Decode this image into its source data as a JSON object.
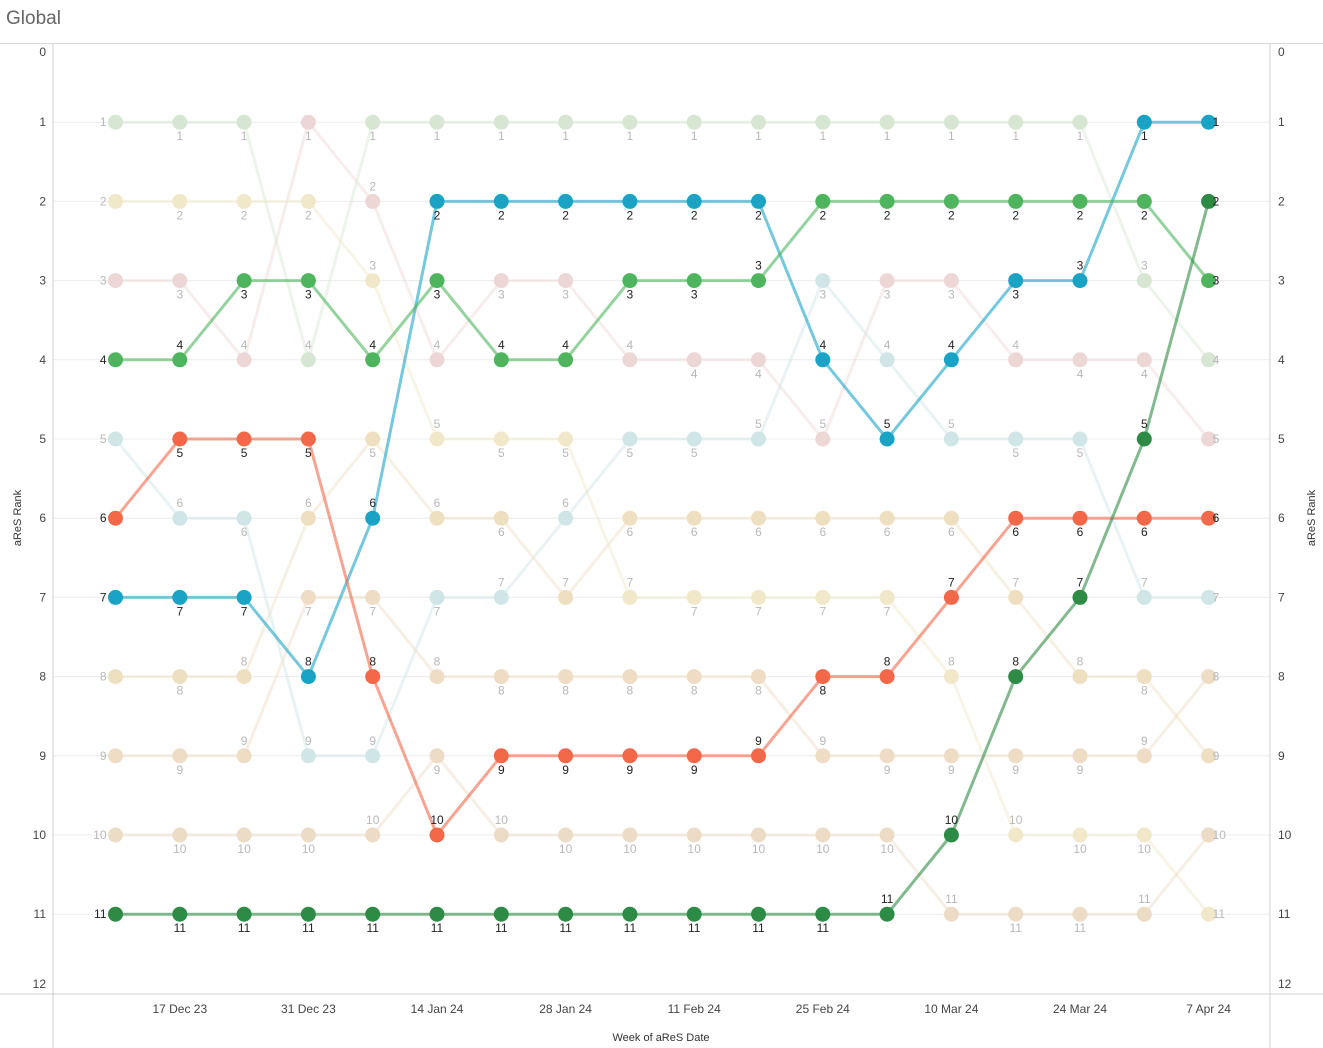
{
  "header": {
    "title": "Global"
  },
  "chart_data": {
    "type": "line",
    "title": "",
    "xlabel": "Week of aReS Date",
    "ylabel": "aReS Rank",
    "ylabel_right": "aReS Rank",
    "ylim": [
      0,
      12
    ],
    "y_reversed": true,
    "y_ticks": [
      "0",
      "1",
      "2",
      "3",
      "4",
      "5",
      "6",
      "7",
      "8",
      "9",
      "10",
      "11",
      "12"
    ],
    "x": [
      "10 Dec 23",
      "17 Dec 23",
      "24 Dec 23",
      "31 Dec 23",
      "7 Jan 24",
      "14 Jan 24",
      "21 Jan 24",
      "28 Jan 24",
      "4 Feb 24",
      "11 Feb 24",
      "18 Feb 24",
      "25 Feb 24",
      "3 Mar 24",
      "10 Mar 24",
      "17 Mar 24",
      "24 Mar 24",
      "31 Mar 24",
      "7 Apr 24"
    ],
    "x_tick_labels": [
      "17 Dec 23",
      "31 Dec 23",
      "14 Jan 24",
      "28 Jan 24",
      "11 Feb 24",
      "25 Feb 24",
      "10 Mar 24",
      "24 Mar 24",
      "7 Apr 24"
    ],
    "grid": true,
    "highlighted_series": [
      {
        "color": "#1ba3c6",
        "values": [
          7,
          7,
          7,
          8,
          6,
          2,
          2,
          2,
          2,
          2,
          2,
          4,
          5,
          4,
          3,
          3,
          1,
          1
        ]
      },
      {
        "color": "#f36849",
        "values": [
          6,
          5,
          5,
          5,
          8,
          10,
          9,
          9,
          9,
          9,
          9,
          8,
          8,
          7,
          6,
          6,
          6,
          6
        ]
      },
      {
        "color": "#4fb45e",
        "values": [
          4,
          4,
          3,
          3,
          4,
          3,
          4,
          4,
          3,
          3,
          3,
          2,
          2,
          2,
          2,
          2,
          2,
          3
        ]
      },
      {
        "color": "#2e8b45",
        "values": [
          11,
          11,
          11,
          11,
          11,
          11,
          11,
          11,
          11,
          11,
          11,
          11,
          11,
          10,
          8,
          7,
          5,
          2
        ]
      }
    ],
    "faded_series": [
      {
        "color": "#d6e6d2",
        "values": [
          1,
          1,
          1,
          4,
          1,
          1,
          1,
          1,
          1,
          1,
          1,
          1,
          1,
          1,
          1,
          1,
          3,
          4
        ]
      },
      {
        "color": "#f0e8c8",
        "values": [
          2,
          2,
          2,
          2,
          3,
          5,
          5,
          5,
          7,
          7,
          7,
          7,
          7,
          8,
          10,
          10,
          10,
          11
        ]
      },
      {
        "color": "#edd6d6",
        "values": [
          3,
          3,
          4,
          1,
          2,
          4,
          3,
          3,
          4,
          4,
          4,
          5,
          3,
          3,
          4,
          4,
          4,
          5
        ]
      },
      {
        "color": "#cfe5e6",
        "values": [
          5,
          6,
          6,
          9,
          9,
          7,
          7,
          6,
          5,
          5,
          5,
          3,
          4,
          5,
          5,
          5,
          7,
          7
        ]
      },
      {
        "color": "#eedfc1",
        "values": [
          8,
          8,
          8,
          6,
          5,
          6,
          6,
          7,
          6,
          6,
          6,
          6,
          6,
          6,
          7,
          8,
          8,
          9
        ]
      },
      {
        "color": "#eedcc4",
        "values": [
          9,
          9,
          9,
          7,
          7,
          8,
          8,
          8,
          8,
          8,
          8,
          9,
          9,
          9,
          9,
          9,
          9,
          8
        ]
      },
      {
        "color": "#ecdcc6",
        "values": [
          10,
          10,
          10,
          10,
          10,
          9,
          10,
          10,
          10,
          10,
          10,
          10,
          10,
          11,
          11,
          11,
          11,
          10
        ]
      }
    ]
  }
}
